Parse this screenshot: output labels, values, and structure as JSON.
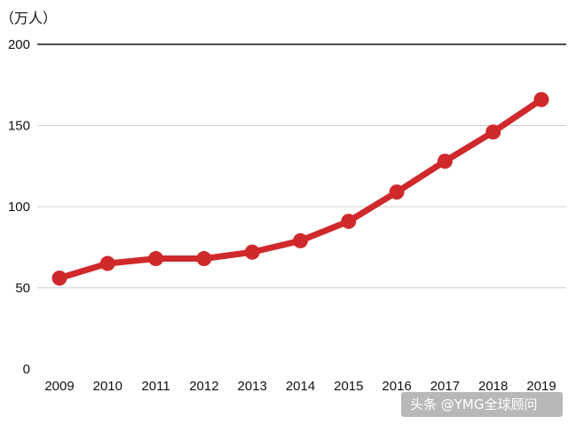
{
  "chart_data": {
    "type": "line",
    "title": "",
    "xlabel": "",
    "ylabel": "",
    "unit_label": "（万人）",
    "x": [
      "2009",
      "2010",
      "2011",
      "2012",
      "2013",
      "2014",
      "2015",
      "2016",
      "2017",
      "2018",
      "2019"
    ],
    "series": [
      {
        "values": [
          56,
          65,
          68,
          68,
          72,
          79,
          91,
          109,
          128,
          146,
          166
        ]
      }
    ],
    "ylim": [
      0,
      200
    ],
    "yticks": [
      "0",
      "50",
      "100",
      "150",
      "200"
    ],
    "grid": true,
    "legend": "none",
    "colors": {
      "line": "#d0292b",
      "grid": "#cfcfcf",
      "top_rule": "#111111"
    }
  },
  "watermark": "头条 @YMG全球顾问"
}
